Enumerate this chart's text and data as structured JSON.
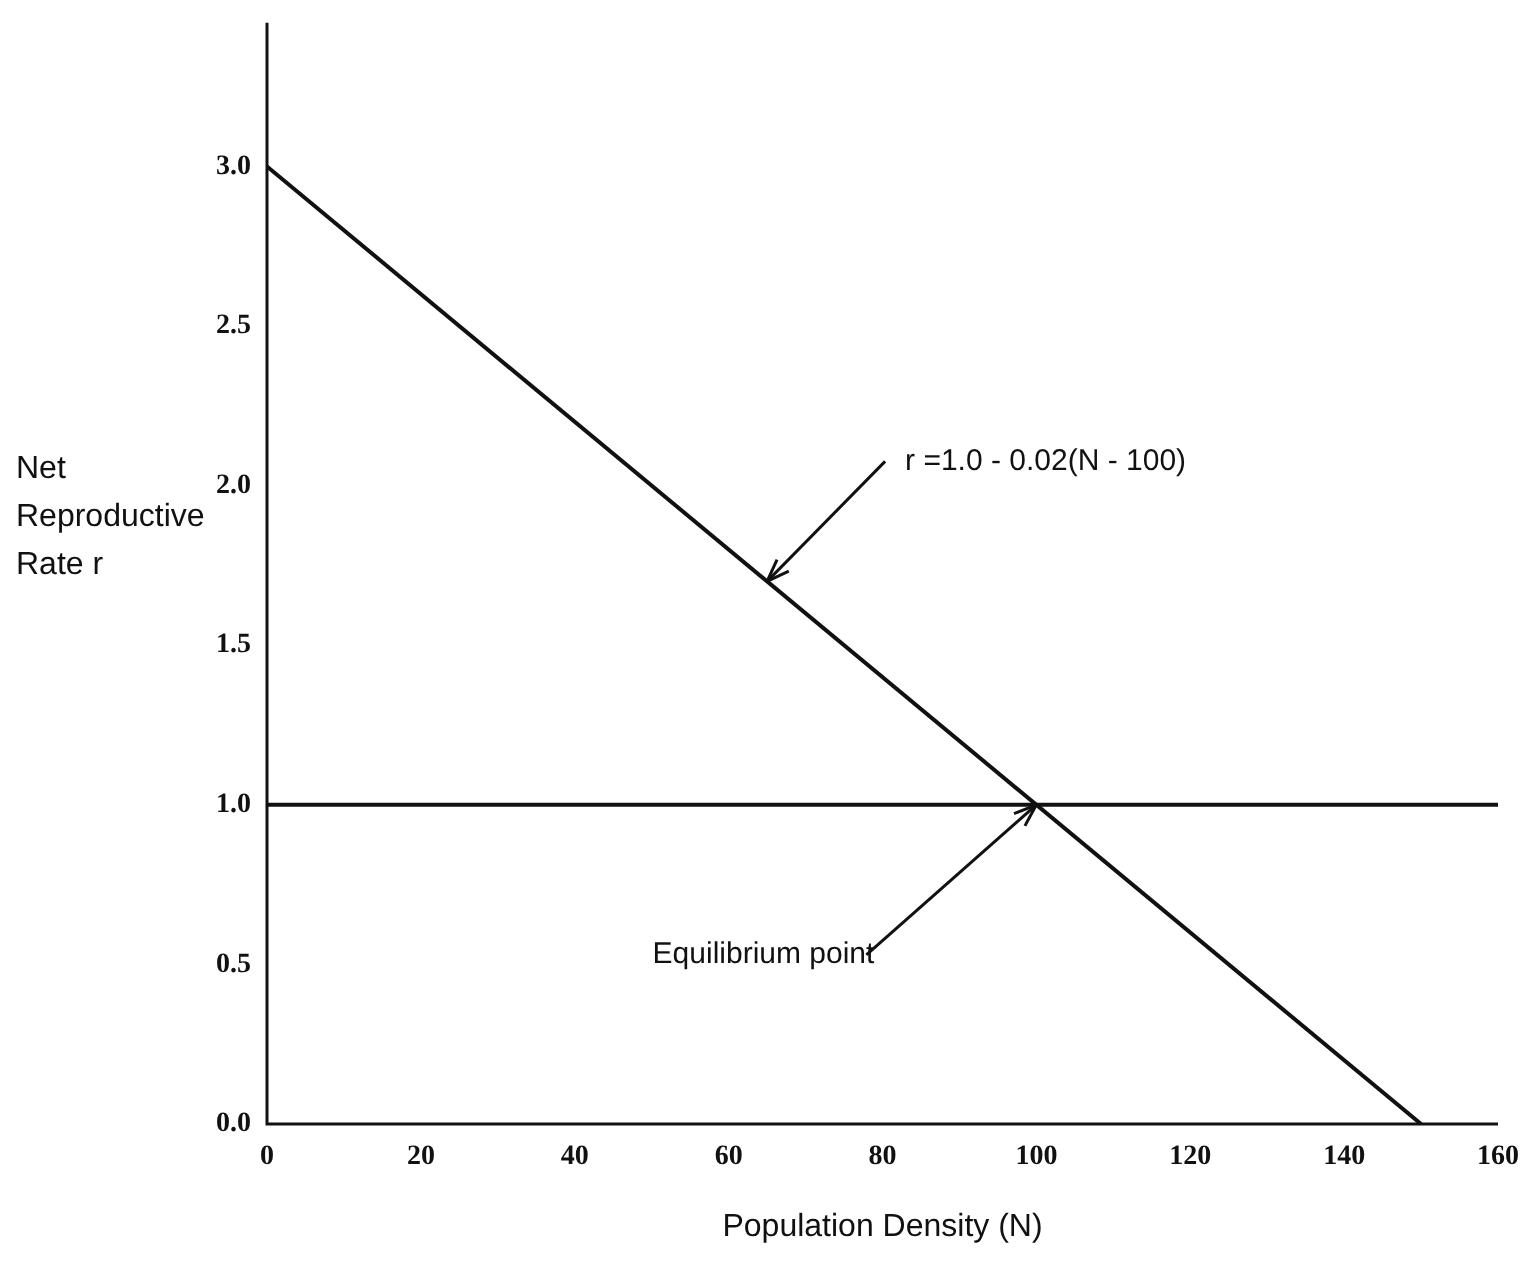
{
  "chart_data": {
    "type": "line",
    "xlabel": "Population Density (N)",
    "ylabel": "Net Reproductive Rate r",
    "x": [
      0,
      150
    ],
    "series": [
      {
        "color": "#111111",
        "values": [
          3.0,
          0.0
        ]
      }
    ],
    "xlim": [
      0,
      160
    ],
    "xticks": [
      0,
      20,
      40,
      60,
      80,
      100,
      120,
      140,
      160
    ],
    "ylim": [
      0,
      3.45
    ],
    "yticks": [
      {
        "value": 0,
        "label": "0.0"
      },
      {
        "value": 0.5,
        "label": "0.5"
      },
      {
        "value": 1,
        "label": "1.0"
      },
      {
        "value": 1.5,
        "label": "1.5"
      },
      {
        "value": 2,
        "label": "2.0"
      },
      {
        "value": 2.5,
        "label": "2.5"
      },
      {
        "value": 3,
        "label": "3.0"
      }
    ],
    "ref_lines": [
      {
        "axis": "y",
        "value": 1.0,
        "color": "#111111"
      }
    ],
    "annotations": [
      {
        "text": "r =1.0 - 0.02(N - 100)",
        "x": 65,
        "y": 1.7
      },
      {
        "text": "Equilibrium point",
        "x": 100,
        "y": 1.0
      }
    ],
    "grid": false,
    "legend": false,
    "marker": "none",
    "line_style": "solid"
  }
}
